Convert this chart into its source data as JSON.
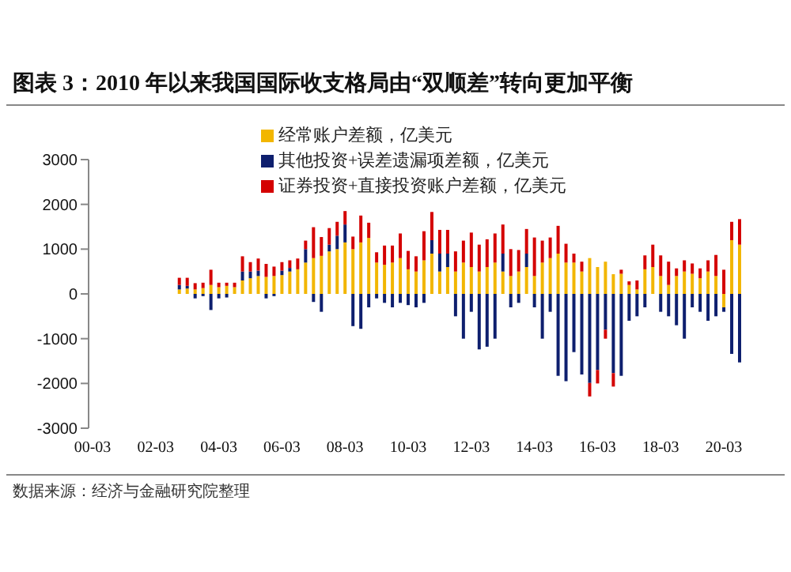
{
  "chart_data": {
    "type": "bar",
    "stacked": true,
    "title": "图表 3：2010 年以来我国国际收支格局由“双顺差”转向更加平衡",
    "categories": [
      "00-03",
      null,
      null,
      null,
      null,
      null,
      null,
      null,
      "02-03",
      null,
      null,
      null,
      null,
      null,
      null,
      null,
      "04-03",
      null,
      null,
      null,
      null,
      null,
      null,
      null,
      "06-03",
      null,
      null,
      null,
      null,
      null,
      null,
      null,
      "08-03",
      null,
      null,
      null,
      null,
      null,
      null,
      null,
      "10-03",
      null,
      null,
      null,
      null,
      null,
      null,
      null,
      "12-03",
      null,
      null,
      null,
      null,
      null,
      null,
      null,
      "14-03",
      null,
      null,
      null,
      null,
      null,
      null,
      null,
      "16-03",
      null,
      null,
      null,
      null,
      null,
      null,
      null,
      "18-03",
      null,
      null,
      null,
      null,
      null,
      null,
      null,
      "20-03",
      null,
      null
    ],
    "series": [
      {
        "name": "经常账户差额，亿美元",
        "color": "#f2b600",
        "values": [
          null,
          null,
          null,
          null,
          null,
          null,
          null,
          null,
          null,
          null,
          null,
          100,
          120,
          100,
          130,
          200,
          150,
          180,
          150,
          300,
          350,
          400,
          380,
          400,
          420,
          500,
          550,
          700,
          800,
          850,
          950,
          1000,
          1150,
          1000,
          1150,
          1250,
          700,
          650,
          700,
          800,
          550,
          500,
          750,
          900,
          500,
          600,
          500,
          700,
          600,
          500,
          600,
          700,
          500,
          400,
          500,
          600,
          400,
          700,
          800,
          900,
          700,
          700,
          500,
          800,
          600,
          720,
          440,
          450,
          200,
          100,
          550,
          600,
          400,
          200,
          400,
          500,
          450,
          350,
          500,
          400,
          -300,
          1200,
          1100
        ]
      },
      {
        "name": "其他投资+误差遗漏项差额，亿美元",
        "color": "#0e1f6e",
        "values": [
          null,
          null,
          null,
          null,
          null,
          null,
          null,
          null,
          null,
          null,
          null,
          100,
          60,
          -100,
          -50,
          -360,
          -100,
          -80,
          0,
          200,
          150,
          120,
          -100,
          -50,
          100,
          80,
          0,
          300,
          -180,
          -400,
          150,
          300,
          400,
          -720,
          -780,
          -300,
          -100,
          -200,
          -300,
          -200,
          -250,
          -300,
          -200,
          300,
          400,
          300,
          -500,
          -1000,
          -400,
          -1240,
          -1180,
          -1000,
          400,
          -300,
          -200,
          300,
          -300,
          -1000,
          -400,
          -1830,
          -1950,
          -1300,
          -1800,
          -1990,
          -1700,
          -800,
          -1770,
          -1830,
          -600,
          -500,
          -300,
          0,
          -400,
          -500,
          -700,
          -1000,
          -300,
          -400,
          -600,
          -500,
          -100,
          -1340,
          -1530
        ]
      },
      {
        "name": "证券投资+直接投资账户差额，亿美元",
        "color": "#d40000",
        "values": [
          null,
          null,
          null,
          null,
          null,
          null,
          null,
          null,
          null,
          null,
          null,
          160,
          180,
          140,
          120,
          340,
          100,
          70,
          100,
          340,
          210,
          270,
          290,
          210,
          190,
          170,
          240,
          190,
          690,
          420,
          370,
          310,
          300,
          280,
          600,
          340,
          230,
          430,
          380,
          550,
          410,
          340,
          650,
          630,
          530,
          530,
          450,
          490,
          770,
          600,
          620,
          650,
          650,
          600,
          480,
          550,
          860,
          490,
          460,
          620,
          420,
          200,
          220,
          -300,
          -300,
          -200,
          -300,
          90,
          80,
          200,
          310,
          500,
          460,
          520,
          170,
          250,
          230,
          220,
          250,
          470,
          540,
          410,
          570
        ]
      }
    ],
    "ylim": [
      -3000,
      3000
    ],
    "yticks": [
      -3000,
      -2000,
      -1000,
      0,
      1000,
      2000,
      3000
    ],
    "grid": false,
    "legend": "top",
    "annotations": [
      "数据来源：经济与金融研究院整理"
    ]
  }
}
